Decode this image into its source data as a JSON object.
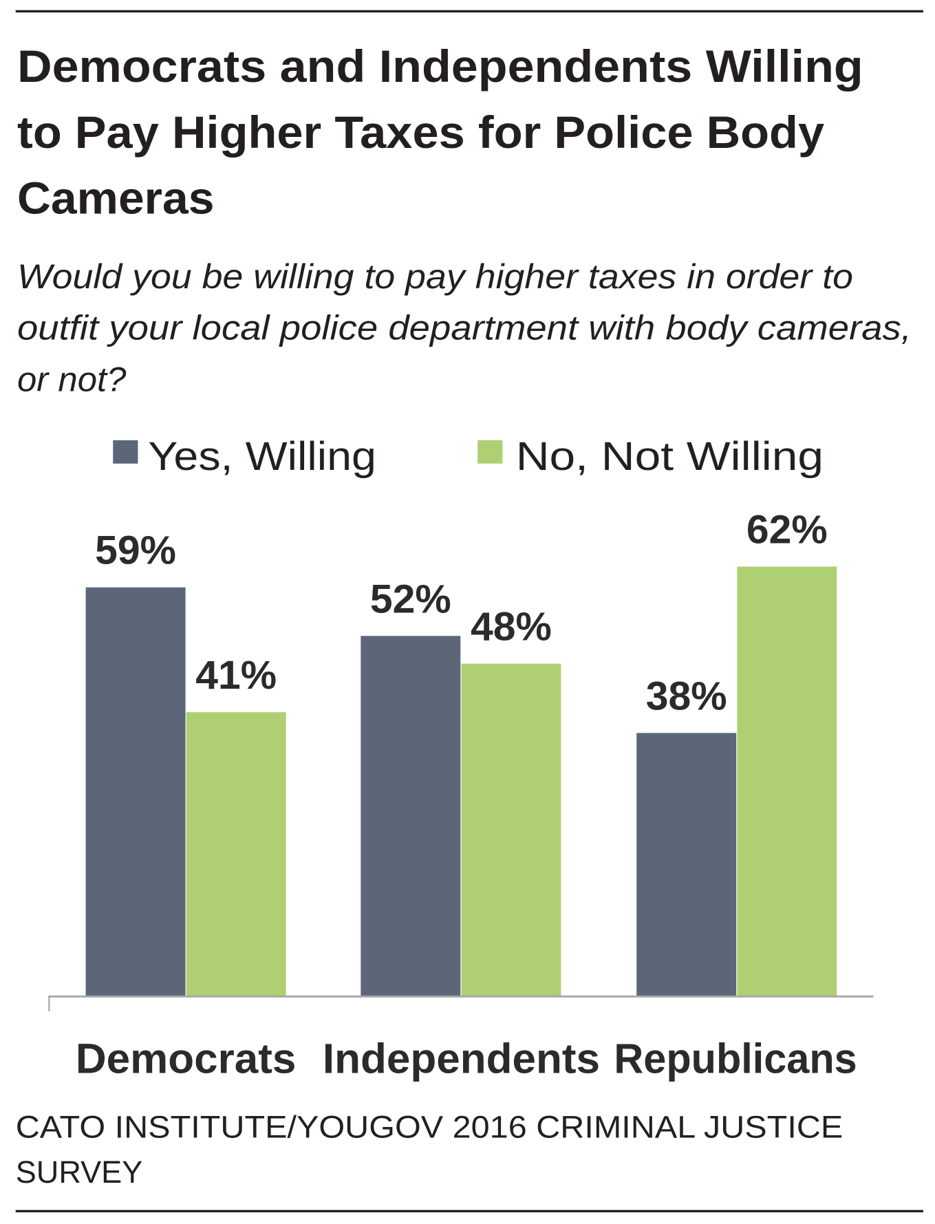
{
  "colors": {
    "yes": "#5b6779",
    "no": "#afd072",
    "text": "#231f20",
    "axis": "#a6a6a6"
  },
  "chart_data": {
    "type": "bar",
    "title_lines": [
      "Democrats and Independents Willing",
      "to Pay Higher Taxes for Police Body",
      "Cameras"
    ],
    "subtitle_lines": [
      "Would you be willing to pay higher taxes in order to",
      "outfit your local police department with body cameras,",
      "or not?"
    ],
    "categories": [
      "Democrats",
      "Independents",
      "Republicans"
    ],
    "series": [
      {
        "name": "Yes, Willing",
        "values": [
          59,
          52,
          38
        ],
        "labels": [
          "59%",
          "52%",
          "38%"
        ]
      },
      {
        "name": "No, Not Willing",
        "values": [
          41,
          48,
          62
        ],
        "labels": [
          "41%",
          "48%",
          "62%"
        ]
      }
    ],
    "ylim": [
      0,
      100
    ],
    "unit": "%",
    "legend_position": "top",
    "grid": false,
    "source_lines": [
      "CATO INSTITUTE/YOUGOV 2016 CRIMINAL JUSTICE",
      "SURVEY"
    ]
  }
}
